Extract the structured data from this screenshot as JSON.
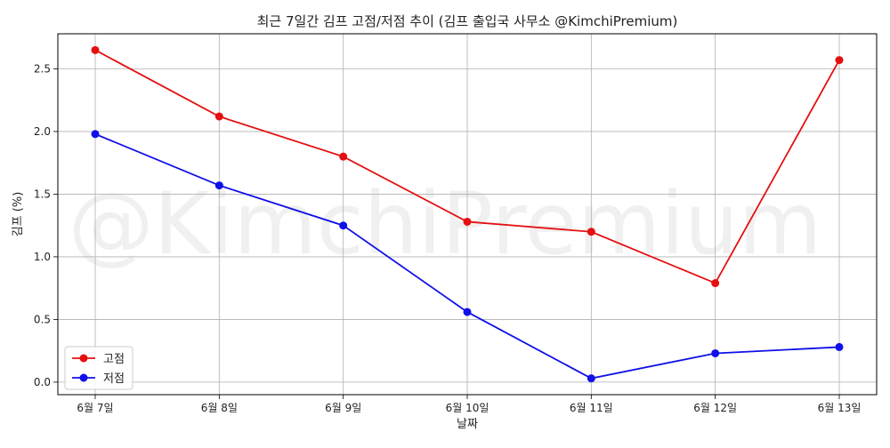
{
  "chart_data": {
    "type": "line",
    "title": "최근 7일간 김프 고점/저점 추이 (김프 출입국 사무소 @KimchiPremium)",
    "xlabel": "날짜",
    "ylabel": "김프 (%)",
    "watermark": "@KimchiPremium",
    "categories": [
      "6월 7일",
      "6월 8일",
      "6월 9일",
      "6월 10일",
      "6월 11일",
      "6월 12일",
      "6월 13일"
    ],
    "ylim": [
      -0.1,
      2.78
    ],
    "yticks": [
      0.0,
      0.5,
      1.0,
      1.5,
      2.0,
      2.5
    ],
    "ytick_labels": [
      "0.0",
      "0.5",
      "1.0",
      "1.5",
      "2.0",
      "2.5"
    ],
    "grid": true,
    "legend_position": "lower-left",
    "series": [
      {
        "name": "고점",
        "color": "#e41010",
        "values": [
          2.65,
          2.12,
          1.8,
          1.28,
          1.2,
          0.79,
          2.57
        ]
      },
      {
        "name": "저점",
        "color": "#1010e8",
        "values": [
          1.98,
          1.57,
          1.25,
          0.56,
          0.03,
          0.23,
          0.28
        ]
      }
    ]
  }
}
